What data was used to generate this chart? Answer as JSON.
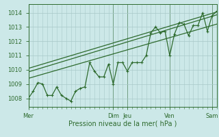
{
  "xlabel": "Pression niveau de la mer( hPa )",
  "ylabel": "",
  "bg_color": "#cce8e8",
  "line_color": "#2d6a2d",
  "grid_color": "#a8c8c8",
  "tick_label_color": "#2d6a2d",
  "ylim": [
    1007.4,
    1014.6
  ],
  "yticks": [
    1008,
    1009,
    1010,
    1011,
    1012,
    1013,
    1014
  ],
  "day_labels": [
    "Mer",
    "Dim",
    "Jeu",
    "Ven",
    "Sam"
  ],
  "day_positions": [
    0,
    18,
    21,
    30,
    39
  ],
  "x_data": [
    0,
    1,
    2,
    3,
    4,
    5,
    6,
    7,
    8,
    9,
    10,
    11,
    12,
    13,
    14,
    15,
    16,
    17,
    18,
    19,
    20,
    21,
    22,
    23,
    24,
    25,
    26,
    27,
    28,
    29,
    30,
    31,
    32,
    33,
    34,
    35,
    36,
    37,
    38,
    39,
    40
  ],
  "forecast_data": [
    1008.0,
    1008.5,
    1009.1,
    1009.0,
    1008.2,
    1008.2,
    1008.8,
    1008.2,
    1008.0,
    1007.8,
    1008.5,
    1008.7,
    1008.8,
    1010.5,
    1009.9,
    1009.5,
    1009.5,
    1010.4,
    1009.0,
    1010.5,
    1010.5,
    1009.9,
    1010.5,
    1010.5,
    1010.5,
    1011.0,
    1012.6,
    1013.0,
    1012.6,
    1012.7,
    1011.0,
    1012.5,
    1013.3,
    1013.2,
    1012.4,
    1013.1,
    1013.1,
    1014.0,
    1012.7,
    1013.8,
    1014.1
  ],
  "trend1_x": [
    0,
    40
  ],
  "trend1_y": [
    1009.85,
    1013.85
  ],
  "trend2_x": [
    0,
    40
  ],
  "trend2_y": [
    1009.4,
    1013.2
  ],
  "trend3_x": [
    0,
    40
  ],
  "trend3_y": [
    1010.1,
    1014.05
  ],
  "xlim": [
    0,
    40
  ]
}
